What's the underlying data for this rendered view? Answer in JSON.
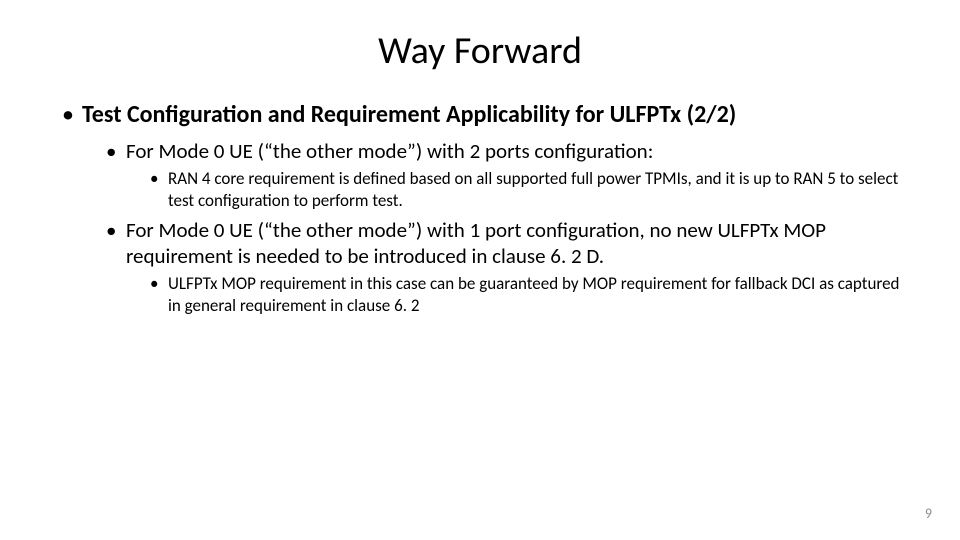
{
  "slide": {
    "title": "Way Forward",
    "page_number": "9",
    "colors": {
      "background": "#ffffff",
      "text": "#000000",
      "page_number": "#8c8c8c"
    },
    "typography": {
      "title_fontsize": 38,
      "lvl1_fontsize": 24,
      "lvl2_fontsize": 21,
      "lvl3_fontsize": 17,
      "lvl1_weight": "700",
      "lvl2_weight": "400",
      "lvl3_weight": "400",
      "font_family": "Calibri"
    },
    "bullets": {
      "lvl1": {
        "text": "Test Configuration and Requirement Applicability for ULFPTx (2/2)"
      },
      "lvl2": [
        {
          "text": "For Mode 0 UE (“the other mode”) with 2 ports configuration:",
          "lvl3": [
            "RAN 4 core requirement is defined based on all supported full power TPMIs, and it is up to RAN 5 to select test configuration to perform test."
          ]
        },
        {
          "text": "For Mode 0 UE (“the other mode”) with 1 port configuration, no new ULFPTx MOP requirement is needed to be introduced in clause 6. 2 D.",
          "lvl3": [
            "ULFPTx MOP requirement in this case can be guaranteed by MOP requirement for fallback DCI as captured in general requirement in clause 6. 2"
          ]
        }
      ]
    }
  }
}
